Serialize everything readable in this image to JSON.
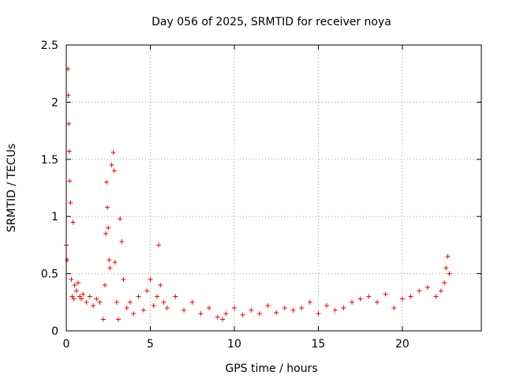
{
  "chart_data": {
    "type": "scatter",
    "title": "Day 056 of 2025, SRMTID for receiver noya",
    "xlabel": "GPS time / hours",
    "ylabel": "SRMTID / TECUs",
    "xlim": [
      0,
      24.7
    ],
    "ylim": [
      0,
      2.5
    ],
    "x_ticks": [
      0,
      5,
      10,
      15,
      20
    ],
    "y_ticks": [
      0,
      0.5,
      1,
      1.5,
      2,
      2.5
    ],
    "x_tick_labels": [
      "0",
      "5",
      "10",
      "15",
      "20"
    ],
    "y_tick_labels": [
      "0",
      "0.5",
      "1",
      "1.5",
      "2",
      "2.5"
    ],
    "grid": true,
    "marker": "+",
    "color": "#ff0000",
    "series": [
      {
        "name": "SRMTID",
        "x": [
          0.0,
          0.05,
          0.1,
          0.12,
          0.15,
          0.18,
          0.2,
          0.25,
          0.3,
          0.35,
          0.4,
          0.45,
          0.5,
          0.6,
          0.7,
          0.8,
          0.9,
          1.0,
          1.2,
          1.4,
          1.6,
          1.8,
          2.0,
          2.2,
          2.3,
          2.35,
          2.4,
          2.45,
          2.5,
          2.55,
          2.6,
          2.7,
          2.8,
          2.85,
          2.9,
          3.0,
          3.1,
          3.2,
          3.3,
          3.4,
          3.6,
          3.8,
          4.0,
          4.3,
          4.6,
          4.8,
          5.0,
          5.2,
          5.4,
          5.5,
          5.6,
          5.8,
          6.0,
          6.5,
          7.0,
          7.5,
          8.0,
          8.5,
          9.0,
          9.3,
          9.5,
          10.0,
          10.5,
          11.0,
          11.5,
          12.0,
          12.5,
          13.0,
          13.5,
          14.0,
          14.5,
          15.0,
          15.5,
          16.0,
          16.5,
          17.0,
          17.5,
          18.0,
          18.5,
          19.0,
          19.5,
          20.0,
          20.5,
          21.0,
          21.5,
          22.0,
          22.3,
          22.5,
          22.6,
          22.7,
          22.8
        ],
        "y": [
          0.75,
          0.62,
          2.29,
          2.06,
          1.81,
          1.57,
          1.31,
          1.12,
          0.45,
          0.3,
          0.95,
          0.28,
          0.4,
          0.35,
          0.42,
          0.3,
          0.28,
          0.32,
          0.25,
          0.3,
          0.22,
          0.28,
          0.25,
          0.1,
          0.4,
          0.85,
          1.3,
          1.08,
          0.9,
          0.62,
          0.55,
          1.45,
          1.56,
          1.4,
          0.6,
          0.25,
          0.1,
          0.98,
          0.78,
          0.45,
          0.2,
          0.25,
          0.15,
          0.3,
          0.18,
          0.35,
          0.45,
          0.22,
          0.3,
          0.75,
          0.4,
          0.25,
          0.2,
          0.3,
          0.18,
          0.25,
          0.15,
          0.2,
          0.12,
          0.1,
          0.15,
          0.2,
          0.14,
          0.18,
          0.15,
          0.22,
          0.16,
          0.2,
          0.18,
          0.2,
          0.25,
          0.15,
          0.22,
          0.18,
          0.2,
          0.25,
          0.28,
          0.3,
          0.25,
          0.32,
          0.2,
          0.28,
          0.3,
          0.35,
          0.38,
          0.3,
          0.35,
          0.42,
          0.55,
          0.65,
          0.5
        ]
      }
    ]
  }
}
